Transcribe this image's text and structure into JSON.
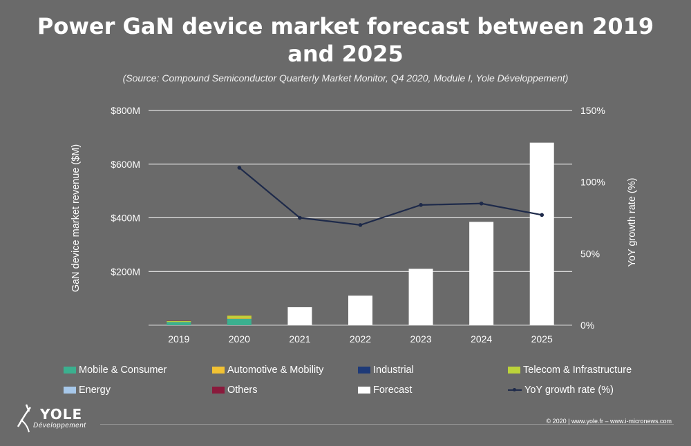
{
  "title_line1": "Power GaN device market forecast between 2019",
  "title_line2": "and 2025",
  "subtitle": "(Source: Compound Semiconductor Quarterly Market Monitor, Q4 2020, Module I, Yole Développement)",
  "chart_data": {
    "type": "bar",
    "categories": [
      "2019",
      "2020",
      "2021",
      "2022",
      "2023",
      "2024",
      "2025"
    ],
    "ylabel": "GaN device market revenue ($M)",
    "y2label": "YoY growth rate (%)",
    "ylim": [
      0,
      800
    ],
    "y2lim": [
      0,
      150
    ],
    "y_ticks": [
      "$0M",
      "$200M",
      "$400M",
      "$600M",
      "$800M"
    ],
    "y_tick_values": [
      0,
      200,
      400,
      600,
      800
    ],
    "y2_ticks": [
      "0%",
      "50%",
      "100%",
      "150%"
    ],
    "y2_tick_values": [
      0,
      50,
      100,
      150
    ],
    "grid": true,
    "legend_position": "bottom",
    "stack_series": [
      {
        "name": "Mobile & Consumer",
        "color": "#3bb08f",
        "values": [
          12,
          24,
          0,
          0,
          0,
          0,
          0
        ]
      },
      {
        "name": "Automotive & Mobility",
        "color": "#f2c233",
        "values": [
          1,
          4,
          0,
          0,
          0,
          0,
          0
        ]
      },
      {
        "name": "Industrial",
        "color": "#1e3a78",
        "values": [
          0,
          0,
          0,
          0,
          0,
          0,
          0
        ]
      },
      {
        "name": "Telecom & Infrastructure",
        "color": "#bcd33a",
        "values": [
          3,
          8,
          0,
          0,
          0,
          0,
          0
        ]
      },
      {
        "name": "Energy",
        "color": "#a7c8ea",
        "values": [
          0,
          0,
          0,
          0,
          0,
          0,
          0
        ]
      },
      {
        "name": "Others",
        "color": "#8a1a3c",
        "values": [
          1,
          1,
          0,
          0,
          0,
          0,
          0
        ]
      },
      {
        "name": "Forecast",
        "color": "#ffffff",
        "values": [
          0,
          0,
          67,
          110,
          210,
          385,
          680
        ]
      }
    ],
    "line_series": {
      "name": "YoY growth rate (%)",
      "color": "#1e2a4a",
      "values": [
        null,
        110,
        75,
        70,
        84,
        85,
        77
      ]
    }
  },
  "legend": [
    {
      "label": "Mobile & Consumer",
      "color": "#3bb08f",
      "kind": "swatch"
    },
    {
      "label": "Automotive & Mobility",
      "color": "#f2c233",
      "kind": "swatch"
    },
    {
      "label": "Industrial",
      "color": "#1e3a78",
      "kind": "swatch"
    },
    {
      "label": "Telecom & Infrastructure",
      "color": "#bcd33a",
      "kind": "swatch"
    },
    {
      "label": "Energy",
      "color": "#a7c8ea",
      "kind": "swatch"
    },
    {
      "label": "Others",
      "color": "#8a1a3c",
      "kind": "swatch"
    },
    {
      "label": "Forecast",
      "color": "#ffffff",
      "kind": "swatch"
    },
    {
      "label": "YoY growth rate (%)",
      "color": "#1e2a4a",
      "kind": "line"
    }
  ],
  "logo": {
    "name": "YOLE",
    "sub": "Développement"
  },
  "copyright": "© 2020 | www.yole.fr – www.i-micronews.com"
}
